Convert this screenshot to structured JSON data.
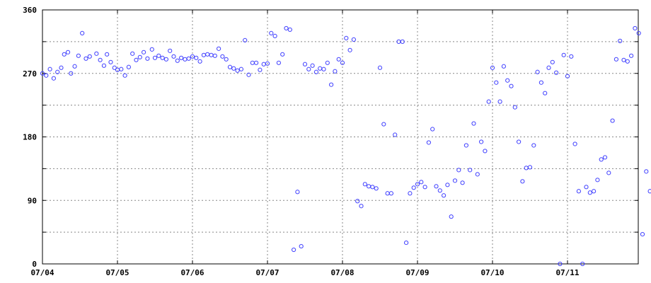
{
  "colors": {
    "background": "#ffffff",
    "axis": "#000000",
    "grid": "#888888",
    "marker": "#4040ff"
  },
  "chart_data": {
    "type": "scatter",
    "title": "",
    "xlabel": "",
    "ylabel": "",
    "grid": true,
    "marker": "hollow-circle",
    "xlim": [
      0,
      8.25
    ],
    "ylim": [
      0,
      360
    ],
    "x_ticks": [
      {
        "value": 0,
        "label": "07/04"
      },
      {
        "value": 1,
        "label": "07/05"
      },
      {
        "value": 2,
        "label": "07/06"
      },
      {
        "value": 3,
        "label": "07/07"
      },
      {
        "value": 4,
        "label": "07/08"
      },
      {
        "value": 5,
        "label": "07/09"
      },
      {
        "value": 6,
        "label": "07/10"
      },
      {
        "value": 7,
        "label": "07/11"
      }
    ],
    "y_ticks": [
      {
        "value": 0,
        "label": "0"
      },
      {
        "value": 45,
        "label": ""
      },
      {
        "value": 90,
        "label": "90"
      },
      {
        "value": 135,
        "label": ""
      },
      {
        "value": 180,
        "label": "180"
      },
      {
        "value": 225,
        "label": ""
      },
      {
        "value": 270,
        "label": "270"
      },
      {
        "value": 315,
        "label": ""
      },
      {
        "value": 360,
        "label": "360"
      }
    ],
    "series": [
      {
        "points": [
          [
            0.0,
            270
          ],
          [
            0.05,
            267
          ],
          [
            0.1,
            276
          ],
          [
            0.15,
            263
          ],
          [
            0.2,
            272
          ],
          [
            0.25,
            278
          ],
          [
            0.29,
            297
          ],
          [
            0.34,
            300
          ],
          [
            0.38,
            270
          ],
          [
            0.43,
            280
          ],
          [
            0.48,
            295
          ],
          [
            0.53,
            327
          ],
          [
            0.58,
            291
          ],
          [
            0.63,
            294
          ],
          [
            0.72,
            298
          ],
          [
            0.77,
            289
          ],
          [
            0.82,
            281
          ],
          [
            0.86,
            297
          ],
          [
            0.91,
            286
          ],
          [
            0.96,
            278
          ],
          [
            1.0,
            275
          ],
          [
            1.05,
            276
          ],
          [
            1.1,
            267
          ],
          [
            1.15,
            279
          ],
          [
            1.2,
            298
          ],
          [
            1.25,
            289
          ],
          [
            1.3,
            293
          ],
          [
            1.35,
            300
          ],
          [
            1.4,
            291
          ],
          [
            1.46,
            304
          ],
          [
            1.5,
            292
          ],
          [
            1.55,
            295
          ],
          [
            1.6,
            292
          ],
          [
            1.65,
            290
          ],
          [
            1.7,
            302
          ],
          [
            1.75,
            294
          ],
          [
            1.8,
            288
          ],
          [
            1.85,
            292
          ],
          [
            1.9,
            290
          ],
          [
            1.95,
            291
          ],
          [
            2.0,
            294
          ],
          [
            2.05,
            292
          ],
          [
            2.1,
            287
          ],
          [
            2.15,
            296
          ],
          [
            2.2,
            297
          ],
          [
            2.25,
            296
          ],
          [
            2.3,
            295
          ],
          [
            2.35,
            305
          ],
          [
            2.4,
            294
          ],
          [
            2.45,
            290
          ],
          [
            2.5,
            279
          ],
          [
            2.55,
            277
          ],
          [
            2.6,
            274
          ],
          [
            2.65,
            276
          ],
          [
            2.7,
            317
          ],
          [
            2.75,
            268
          ],
          [
            2.8,
            285
          ],
          [
            2.85,
            285
          ],
          [
            2.9,
            275
          ],
          [
            2.95,
            283
          ],
          [
            3.0,
            284
          ],
          [
            3.05,
            327
          ],
          [
            3.1,
            323
          ],
          [
            3.15,
            285
          ],
          [
            3.2,
            297
          ],
          [
            3.25,
            334
          ],
          [
            3.3,
            332
          ],
          [
            3.35,
            20
          ],
          [
            3.4,
            102
          ],
          [
            3.45,
            25
          ],
          [
            3.5,
            283
          ],
          [
            3.55,
            276
          ],
          [
            3.6,
            281
          ],
          [
            3.65,
            272
          ],
          [
            3.7,
            277
          ],
          [
            3.75,
            276
          ],
          [
            3.8,
            285
          ],
          [
            3.85,
            254
          ],
          [
            3.9,
            273
          ],
          [
            3.95,
            290
          ],
          [
            4.0,
            285
          ],
          [
            4.05,
            320
          ],
          [
            4.1,
            303
          ],
          [
            4.15,
            318
          ],
          [
            4.2,
            89
          ],
          [
            4.25,
            82
          ],
          [
            4.3,
            113
          ],
          [
            4.35,
            110
          ],
          [
            4.4,
            109
          ],
          [
            4.45,
            107
          ],
          [
            4.5,
            278
          ],
          [
            4.55,
            198
          ],
          [
            4.6,
            100
          ],
          [
            4.65,
            100
          ],
          [
            4.7,
            183
          ],
          [
            4.75,
            315
          ],
          [
            4.8,
            315
          ],
          [
            4.85,
            30
          ],
          [
            4.9,
            100
          ],
          [
            4.95,
            108
          ],
          [
            5.0,
            113
          ],
          [
            5.05,
            116
          ],
          [
            5.1,
            109
          ],
          [
            5.15,
            172
          ],
          [
            5.2,
            191
          ],
          [
            5.25,
            110
          ],
          [
            5.3,
            104
          ],
          [
            5.35,
            97
          ],
          [
            5.4,
            112
          ],
          [
            5.45,
            67
          ],
          [
            5.5,
            118
          ],
          [
            5.55,
            133
          ],
          [
            5.6,
            115
          ],
          [
            5.65,
            168
          ],
          [
            5.7,
            133
          ],
          [
            5.75,
            199
          ],
          [
            5.8,
            127
          ],
          [
            5.85,
            173
          ],
          [
            5.9,
            160
          ],
          [
            5.95,
            230
          ],
          [
            6.0,
            278
          ],
          [
            6.05,
            257
          ],
          [
            6.1,
            230
          ],
          [
            6.15,
            280
          ],
          [
            6.2,
            260
          ],
          [
            6.25,
            252
          ],
          [
            6.3,
            222
          ],
          [
            6.35,
            173
          ],
          [
            6.4,
            117
          ],
          [
            6.45,
            136
          ],
          [
            6.5,
            137
          ],
          [
            6.55,
            168
          ],
          [
            6.6,
            272
          ],
          [
            6.65,
            257
          ],
          [
            6.7,
            242
          ],
          [
            6.75,
            278
          ],
          [
            6.8,
            286
          ],
          [
            6.85,
            271
          ],
          [
            6.9,
            0
          ],
          [
            6.95,
            296
          ],
          [
            7.0,
            266
          ],
          [
            7.05,
            294
          ],
          [
            7.1,
            170
          ],
          [
            7.15,
            103
          ],
          [
            7.2,
            0
          ],
          [
            7.25,
            109
          ],
          [
            7.3,
            101
          ],
          [
            7.35,
            103
          ],
          [
            7.4,
            119
          ],
          [
            7.45,
            148
          ],
          [
            7.5,
            151
          ],
          [
            7.55,
            129
          ],
          [
            7.6,
            203
          ],
          [
            7.65,
            290
          ],
          [
            7.7,
            316
          ],
          [
            7.75,
            289
          ],
          [
            7.8,
            287
          ],
          [
            7.85,
            295
          ],
          [
            7.9,
            334
          ],
          [
            7.95,
            327
          ],
          [
            8.0,
            42
          ],
          [
            8.05,
            131
          ],
          [
            8.1,
            103
          ],
          [
            8.15,
            185
          ],
          [
            8.2,
            265
          ],
          [
            8.25,
            292
          ]
        ]
      }
    ]
  }
}
